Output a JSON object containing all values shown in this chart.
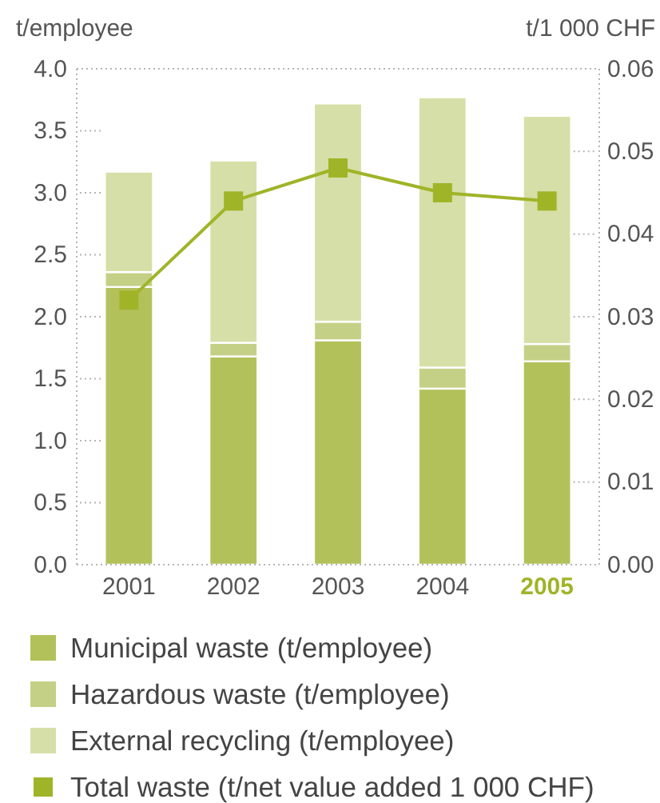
{
  "chart_data": {
    "type": "bar",
    "stacked": true,
    "ylabel": "t/employee",
    "y2label": "t/1 000 CHF",
    "categories": [
      "2001",
      "2002",
      "2003",
      "2004",
      "2005"
    ],
    "series": [
      {
        "name": "Municipal waste (t/employee)",
        "color": "#b3c15b",
        "values": [
          2.24,
          1.68,
          1.81,
          1.42,
          1.64
        ]
      },
      {
        "name": "Hazardous waste (t/employee)",
        "color": "#c5d087",
        "values": [
          0.12,
          0.11,
          0.15,
          0.17,
          0.14
        ]
      },
      {
        "name": "External recycling (t/employee)",
        "color": "#d6dfa7",
        "values": [
          0.81,
          1.47,
          1.76,
          2.18,
          1.84
        ]
      },
      {
        "name": "Total waste (t/net value added 1 000 CHF)",
        "type": "line",
        "axis": "y2",
        "color": "#a0b428",
        "values": [
          0.032,
          0.044,
          0.048,
          0.045,
          0.044
        ]
      }
    ],
    "ylim": [
      0,
      4
    ],
    "yticks": [
      {
        "value": 0,
        "label": "0.0"
      },
      0.5,
      {
        "value": 1,
        "label": "1.0"
      },
      1.5,
      {
        "value": 2,
        "label": "2.0"
      },
      2.5,
      {
        "value": 3,
        "label": "3.0"
      },
      3.5,
      {
        "value": 4,
        "label": "4.0"
      }
    ],
    "y2lim": [
      0,
      0.06
    ],
    "y2ticks": [
      {
        "value": 0,
        "label": "0.00"
      },
      0.01,
      0.02,
      0.03,
      0.04,
      0.05,
      0.06
    ],
    "grid": false,
    "legend": "bottom",
    "marker": "square",
    "line_style": "solid"
  }
}
